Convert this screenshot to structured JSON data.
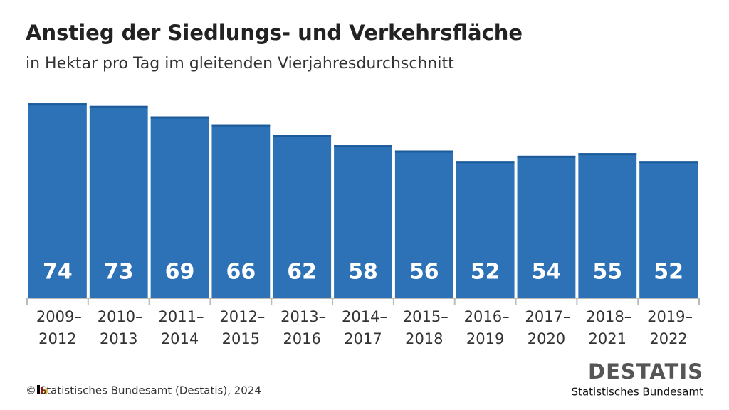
{
  "chart_data": {
    "type": "bar",
    "title": "Anstieg der Siedlungs- und Verkehrsfläche",
    "subtitle": "in Hektar pro Tag im gleitenden Vierjahresdurchschnitt",
    "categories": [
      "2009–2012",
      "2010–2013",
      "2011–2014",
      "2012–2015",
      "2013–2016",
      "2014–2017",
      "2015–2018",
      "2016–2019",
      "2017–2020",
      "2018–2021",
      "2019–2022"
    ],
    "values": [
      74,
      73,
      69,
      66,
      62,
      58,
      56,
      52,
      54,
      55,
      52
    ],
    "color": "#2d72b7",
    "ylim": [
      0,
      80
    ],
    "source": "© Statistisches Bundesamt (Destatis), 2024",
    "logo": "DESTATIS",
    "logo_subtitle": "Statistisches Bundesamt"
  }
}
